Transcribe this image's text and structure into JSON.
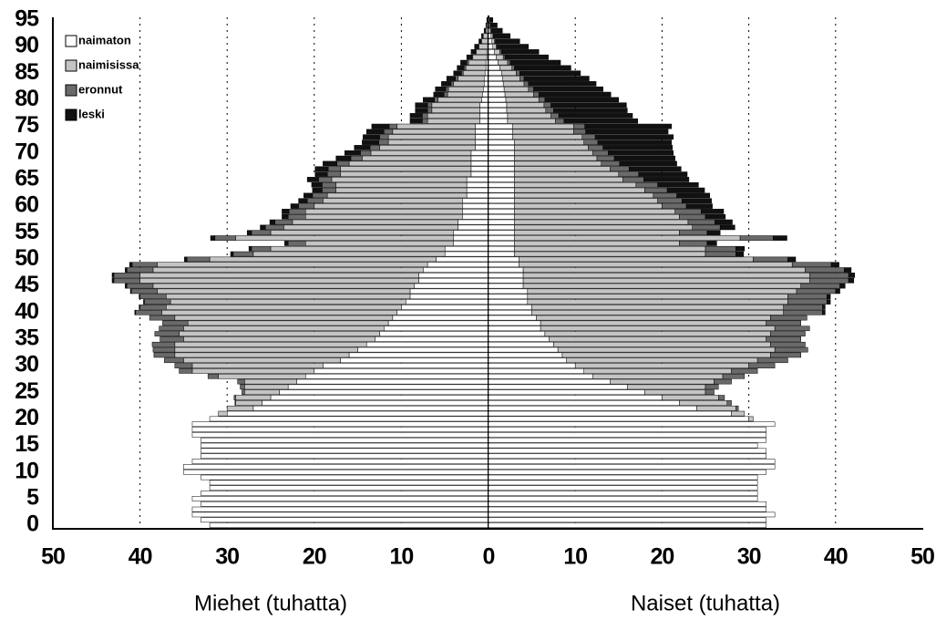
{
  "chart_data": [
    {
      "type": "bar",
      "orientation": "horizontal",
      "xlabel": "Miehet (tuhatta)",
      "legend": "upper left",
      "grid": true,
      "xlim": [
        50,
        0
      ],
      "xticks": [
        50,
        40,
        30,
        20,
        10,
        0
      ],
      "ylim": [
        -0.5,
        95.5
      ],
      "yticks": [
        0,
        5,
        10,
        15,
        20,
        25,
        30,
        35,
        40,
        45,
        50,
        55,
        60,
        65,
        70,
        75,
        80,
        85,
        90,
        95
      ],
      "y": [
        0,
        1,
        2,
        3,
        4,
        5,
        6,
        7,
        8,
        9,
        10,
        11,
        12,
        13,
        14,
        15,
        16,
        17,
        18,
        19,
        20,
        21,
        22,
        23,
        24,
        25,
        26,
        27,
        28,
        29,
        30,
        31,
        32,
        33,
        34,
        35,
        36,
        37,
        38,
        39,
        40,
        41,
        42,
        43,
        44,
        45,
        46,
        47,
        48,
        49,
        50,
        51,
        52,
        53,
        54,
        55,
        56,
        57,
        58,
        59,
        60,
        61,
        62,
        63,
        64,
        65,
        66,
        67,
        68,
        69,
        70,
        71,
        72,
        73,
        74,
        75,
        76,
        77,
        78,
        79,
        80,
        81,
        82,
        83,
        84,
        85,
        86,
        87,
        88,
        89,
        90,
        91,
        92,
        93,
        94,
        95
      ],
      "series": [
        {
          "name": "naimaton",
          "color": "#ffffff",
          "values": [
            32,
            33,
            34,
            34,
            33,
            34,
            33,
            32,
            32,
            33,
            35,
            35,
            34,
            33,
            33,
            33,
            33,
            34,
            34,
            34,
            32,
            30,
            27,
            26,
            25,
            24,
            23,
            22,
            21,
            20,
            19,
            17,
            16,
            15,
            14,
            13,
            12.5,
            12,
            11.5,
            11,
            10.5,
            10,
            9.5,
            9,
            9,
            8.5,
            8,
            8,
            7.5,
            7,
            6,
            5,
            5,
            4,
            4,
            4,
            3.5,
            3.5,
            3,
            3,
            3,
            3,
            2.5,
            2.5,
            2.5,
            2.5,
            2,
            2,
            2,
            2,
            2,
            1.5,
            1.5,
            1.5,
            1.5,
            1.5,
            1,
            1,
            1,
            1,
            0.8,
            0.7,
            0.6,
            0.5,
            0.5,
            0.4,
            0.3,
            0.3,
            0.2,
            0.2,
            0.1,
            0.1,
            0.1,
            0,
            0,
            0
          ]
        },
        {
          "name": "naimisissa",
          "color": "#c4c4c4",
          "values": [
            0,
            0,
            0,
            0,
            0,
            0,
            0,
            0,
            0,
            0,
            0,
            0,
            0,
            0,
            0,
            0,
            0,
            0,
            0,
            0,
            0,
            1,
            3,
            3,
            4,
            4,
            5,
            6,
            10,
            14,
            15,
            18,
            20,
            21,
            22,
            22,
            23,
            23,
            23,
            25,
            27,
            27,
            27,
            28,
            29,
            30,
            32,
            32,
            31,
            31,
            26,
            22,
            20,
            17,
            25,
            21,
            20,
            19,
            18,
            18,
            17,
            16,
            16,
            15,
            15,
            15.5,
            15,
            15,
            14,
            12.5,
            11.5,
            11,
            10,
            10,
            9.5,
            9,
            6,
            6,
            5.5,
            5.5,
            5,
            4,
            4,
            3.5,
            3,
            2.5,
            2.3,
            2,
            1.6,
            1.2,
            1,
            0.7,
            0.5,
            0.3,
            0.2,
            0.1
          ]
        },
        {
          "name": "eronnut",
          "color": "#6a6a6a",
          "values": [
            0,
            0,
            0,
            0,
            0,
            0,
            0,
            0,
            0,
            0,
            0,
            0,
            0,
            0,
            0,
            0,
            0,
            0,
            0,
            0,
            0,
            0,
            0,
            0.1,
            0.2,
            0.3,
            0.5,
            0.8,
            1.2,
            1.5,
            2,
            2.2,
            2.4,
            2.5,
            2.6,
            2.7,
            2.8,
            2.8,
            2.9,
            2.9,
            3,
            3,
            3,
            3,
            3,
            3,
            3,
            3,
            3,
            2.9,
            2.6,
            2.3,
            2.2,
            2,
            2.4,
            2.2,
            2.1,
            2,
            2,
            1.9,
            1.8,
            1.8,
            1.7,
            1.6,
            1.6,
            1.5,
            1.5,
            1.4,
            1.4,
            1.3,
            1.2,
            1.1,
            1.1,
            1,
            1,
            0.9,
            0.6,
            0.6,
            0.5,
            0.5,
            0.4,
            0.4,
            0.3,
            0.3,
            0.3,
            0.2,
            0.2,
            0.2,
            0.1,
            0.1,
            0.1,
            0,
            0,
            0,
            0,
            0
          ]
        },
        {
          "name": "leski",
          "color": "#111111",
          "values": [
            0,
            0,
            0,
            0,
            0,
            0,
            0,
            0,
            0,
            0,
            0,
            0,
            0,
            0,
            0,
            0,
            0,
            0,
            0,
            0,
            0,
            0,
            0,
            0,
            0,
            0,
            0,
            0,
            0,
            0,
            0,
            0,
            0,
            0,
            0,
            0,
            0,
            0,
            0,
            0,
            0.1,
            0.1,
            0.1,
            0.1,
            0.1,
            0.2,
            0.2,
            0.2,
            0.2,
            0.3,
            0.3,
            0.3,
            0.3,
            0.4,
            0.5,
            0.5,
            0.6,
            0.6,
            0.7,
            0.8,
            0.9,
            1,
            1,
            1.1,
            1.2,
            1.3,
            1.4,
            1.5,
            1.6,
            1.7,
            1.8,
            1.8,
            1.9,
            1.9,
            2,
            2,
            1.4,
            1.4,
            1.4,
            1.4,
            1.3,
            1.2,
            1.2,
            1.1,
            1,
            0.9,
            0.8,
            0.7,
            0.6,
            0.5,
            0.4,
            0.3,
            0.2,
            0.2,
            0.1,
            0.1
          ]
        }
      ]
    },
    {
      "type": "bar",
      "orientation": "horizontal",
      "xlabel": "Naiset (tuhatta)",
      "grid": true,
      "xlim": [
        0,
        50
      ],
      "xticks": [
        10,
        20,
        30,
        40,
        50
      ],
      "ylim": [
        -0.5,
        95.5
      ],
      "y": [
        0,
        1,
        2,
        3,
        4,
        5,
        6,
        7,
        8,
        9,
        10,
        11,
        12,
        13,
        14,
        15,
        16,
        17,
        18,
        19,
        20,
        21,
        22,
        23,
        24,
        25,
        26,
        27,
        28,
        29,
        30,
        31,
        32,
        33,
        34,
        35,
        36,
        37,
        38,
        39,
        40,
        41,
        42,
        43,
        44,
        45,
        46,
        47,
        48,
        49,
        50,
        51,
        52,
        53,
        54,
        55,
        56,
        57,
        58,
        59,
        60,
        61,
        62,
        63,
        64,
        65,
        66,
        67,
        68,
        69,
        70,
        71,
        72,
        73,
        74,
        75,
        76,
        77,
        78,
        79,
        80,
        81,
        82,
        83,
        84,
        85,
        86,
        87,
        88,
        89,
        90,
        91,
        92,
        93,
        94,
        95
      ],
      "series": [
        {
          "color": "#ffffff",
          "values": [
            32,
            32,
            33,
            32,
            32,
            31,
            31,
            31,
            31,
            31,
            32,
            33,
            33,
            32,
            32,
            31,
            32,
            32,
            32,
            33,
            30,
            28,
            24,
            22,
            20,
            18,
            16,
            14,
            12,
            11,
            10,
            9,
            8.5,
            8,
            7.5,
            7,
            6.5,
            6,
            6,
            5.5,
            5,
            5,
            4.5,
            4.5,
            4.5,
            4,
            4,
            4,
            4,
            3.5,
            3.5,
            3,
            3,
            3,
            3,
            3,
            3,
            3,
            3,
            3,
            3,
            3,
            3,
            3,
            3,
            3,
            3,
            3,
            3,
            3,
            3,
            3,
            3,
            2.8,
            2.8,
            2.8,
            2.2,
            2.2,
            2.1,
            2.1,
            2,
            1.9,
            1.8,
            1.7,
            1.6,
            1.5,
            1.3,
            1.1,
            0.9,
            0.7,
            0.5,
            0.4,
            0.3,
            0.2,
            0.1,
            0.1
          ]
        },
        {
          "color": "#c4c4c4",
          "values": [
            0,
            0,
            0,
            0,
            0,
            0,
            0,
            0,
            0,
            0,
            0,
            0,
            0,
            0,
            0,
            0,
            0,
            0,
            0,
            0,
            0.5,
            1.5,
            4.5,
            5.5,
            6.5,
            7,
            9,
            12,
            15,
            17,
            20,
            22,
            24,
            25,
            25,
            25,
            26,
            27,
            26,
            27,
            29,
            29,
            30,
            30,
            31,
            32,
            33,
            33,
            32.5,
            31.5,
            27,
            22,
            22,
            19,
            26,
            19,
            20.5,
            20,
            19,
            18.5,
            17,
            16.5,
            16,
            15,
            14,
            12.5,
            12,
            11,
            10,
            9.5,
            9,
            8.5,
            8,
            8,
            7,
            7,
            5.5,
            5,
            4.5,
            4.3,
            3.8,
            3.3,
            2.8,
            2.4,
            2,
            1.7,
            1.4,
            1.1,
            0.8,
            0.6,
            0.4,
            0.3,
            0.2,
            0.1,
            0.1,
            0
          ]
        },
        {
          "color": "#6a6a6a",
          "values": [
            0,
            0,
            0,
            0,
            0,
            0,
            0,
            0,
            0,
            0,
            0,
            0,
            0,
            0,
            0,
            0,
            0,
            0,
            0,
            0,
            0,
            0,
            0.3,
            0.5,
            0.7,
            1,
            1.5,
            2,
            2.5,
            3,
            3,
            3.5,
            3.5,
            3.8,
            4,
            4,
            4,
            4,
            4,
            4.2,
            4.5,
            4.5,
            4.5,
            4.5,
            4.5,
            4.5,
            4.5,
            4.5,
            4.5,
            4.5,
            4,
            3.5,
            3.5,
            3.2,
            3.8,
            3.2,
            3.2,
            3.1,
            3,
            3,
            2.8,
            2.8,
            2.7,
            2.6,
            2.5,
            2.4,
            2.3,
            2.2,
            2.1,
            2,
            1.8,
            1.7,
            1.6,
            1.5,
            1.4,
            1.3,
            1,
            0.9,
            0.9,
            0.8,
            0.7,
            0.6,
            0.6,
            0.5,
            0.5,
            0.4,
            0.3,
            0.3,
            0.2,
            0.2,
            0.1,
            0.1,
            0,
            0,
            0,
            0
          ]
        },
        {
          "color": "#111111",
          "values": [
            0,
            0,
            0,
            0,
            0,
            0,
            0,
            0,
            0,
            0,
            0,
            0,
            0,
            0,
            0,
            0,
            0,
            0,
            0,
            0,
            0,
            0,
            0,
            0,
            0,
            0,
            0,
            0,
            0,
            0,
            0,
            0,
            0,
            0,
            0,
            0,
            0,
            0,
            0,
            0,
            0.3,
            0.3,
            0.4,
            0.4,
            0.5,
            0.6,
            0.6,
            0.7,
            0.8,
            0.9,
            0.9,
            0.9,
            1,
            1.1,
            1.6,
            1.5,
            1.7,
            2,
            2.3,
            2.6,
            3,
            3.4,
            3.8,
            4.3,
            4.7,
            5.2,
            5.6,
            6,
            6.6,
            7,
            7.5,
            8,
            8.5,
            9,
            9.5,
            10,
            8.5,
            8.5,
            8.5,
            8.7,
            8.5,
            8.3,
            8,
            7.8,
            7.5,
            7,
            6.5,
            5.8,
            5,
            4.3,
            3.6,
            2.8,
            2,
            1.3,
            0.8,
            0.4
          ]
        }
      ]
    }
  ]
}
